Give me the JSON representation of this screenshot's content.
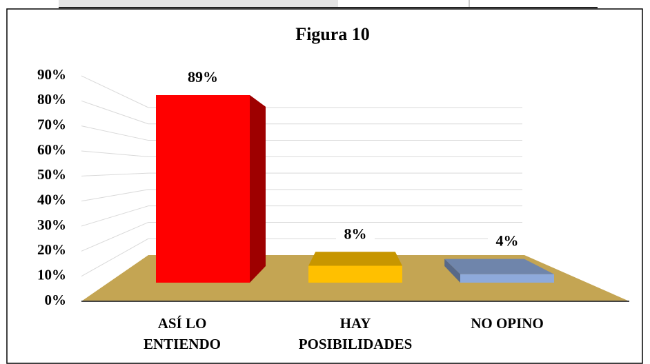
{
  "chart_data": {
    "type": "bar3d",
    "title": "Figura 10",
    "categories": [
      "ASÍ LO ENTIENDO",
      "HAY POSIBILIDADES",
      "NO OPINO"
    ],
    "values": [
      89,
      8,
      4
    ],
    "value_labels": [
      "89%",
      "8%",
      "4%"
    ],
    "colors": [
      "#ff0000",
      "#ffc000",
      "#8eaadb"
    ],
    "ylim": [
      0,
      90
    ],
    "yticks": [
      {
        "value": 0,
        "label": "0%"
      },
      {
        "value": 10,
        "label": "10%"
      },
      {
        "value": 20,
        "label": "20%"
      },
      {
        "value": 30,
        "label": "30%"
      },
      {
        "value": 40,
        "label": "40%"
      },
      {
        "value": 50,
        "label": "50%"
      },
      {
        "value": 60,
        "label": "60%"
      },
      {
        "value": 70,
        "label": "70%"
      },
      {
        "value": 80,
        "label": "80%"
      },
      {
        "value": 90,
        "label": "90%"
      }
    ],
    "grid": true
  }
}
